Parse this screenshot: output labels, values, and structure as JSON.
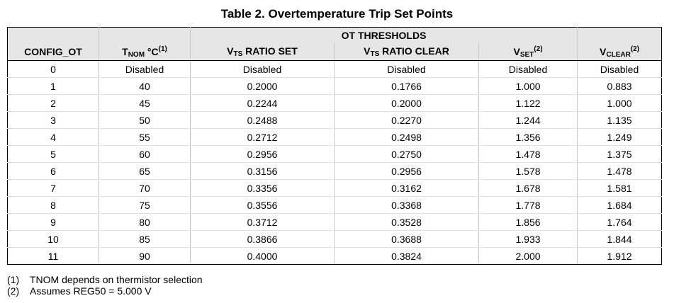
{
  "title": "Table 2. Overtemperature Trip Set Points",
  "group_header": "OT THRESHOLDS",
  "columns": {
    "config_ot": "CONFIG_OT",
    "tnom": {
      "main": "T",
      "sub": "NOM",
      "rest": " °C",
      "sup": "(1)"
    },
    "vts_set": {
      "main": "V",
      "sub": "TS",
      "rest": " RATIO SET"
    },
    "vts_clear": {
      "main": "V",
      "sub": "TS",
      "rest": " RATIO CLEAR"
    },
    "vset": {
      "main": "V",
      "sub": "SET",
      "sup": "(2)"
    },
    "vclear": {
      "main": "V",
      "sub": "CLEAR",
      "sup": "(2)"
    }
  },
  "rows": [
    [
      "0",
      "Disabled",
      "Disabled",
      "Disabled",
      "Disabled",
      "Disabled"
    ],
    [
      "1",
      "40",
      "0.2000",
      "0.1766",
      "1.000",
      "0.883"
    ],
    [
      "2",
      "45",
      "0.2244",
      "0.2000",
      "1.122",
      "1.000"
    ],
    [
      "3",
      "50",
      "0.2488",
      "0.2270",
      "1.244",
      "1.135"
    ],
    [
      "4",
      "55",
      "0.2712",
      "0.2498",
      "1.356",
      "1.249"
    ],
    [
      "5",
      "60",
      "0.2956",
      "0.2750",
      "1.478",
      "1.375"
    ],
    [
      "6",
      "65",
      "0.3156",
      "0.2956",
      "1.578",
      "1.478"
    ],
    [
      "7",
      "70",
      "0.3356",
      "0.3162",
      "1.678",
      "1.581"
    ],
    [
      "8",
      "75",
      "0.3556",
      "0.3368",
      "1.778",
      "1.684"
    ],
    [
      "9",
      "80",
      "0.3712",
      "0.3528",
      "1.856",
      "1.764"
    ],
    [
      "10",
      "85",
      "0.3866",
      "0.3688",
      "1.933",
      "1.844"
    ],
    [
      "11",
      "90",
      "0.4000",
      "0.3824",
      "2.000",
      "1.912"
    ]
  ],
  "footnotes": [
    {
      "mark": "(1)",
      "text": "TNOM depends on thermistor selection"
    },
    {
      "mark": "(2)",
      "text": "Assumes REG50 = 5.000 V"
    }
  ]
}
